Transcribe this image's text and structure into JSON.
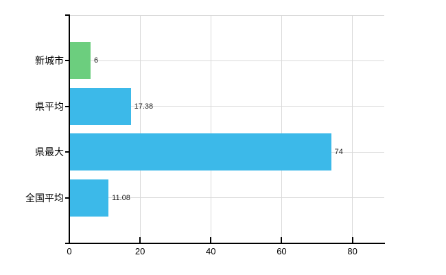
{
  "chart": {
    "title": "",
    "background": "#ffffff",
    "axis_color": "#000000",
    "grid_color": "#d9d9d9",
    "value_text_color": "#222222"
  },
  "chart_data": {
    "type": "bar",
    "orientation": "horizontal",
    "title": "",
    "xlabel": "",
    "ylabel": "",
    "categories": [
      "新城市",
      "県平均",
      "県最大",
      "全国平均"
    ],
    "values": [
      6,
      17.38,
      74,
      11.08
    ],
    "value_labels": [
      "6",
      "17.38",
      "74",
      "11.08"
    ],
    "bar_colors": [
      "#6cce7e",
      "#3cb9e9",
      "#3cb9e9",
      "#3cb9e9"
    ],
    "xlim": [
      0,
      89
    ],
    "xticks": [
      0,
      20,
      40,
      60,
      80
    ],
    "grid": {
      "vertical": true,
      "horizontal_row_lines": true,
      "top_border": true
    },
    "legend_position": "none"
  }
}
